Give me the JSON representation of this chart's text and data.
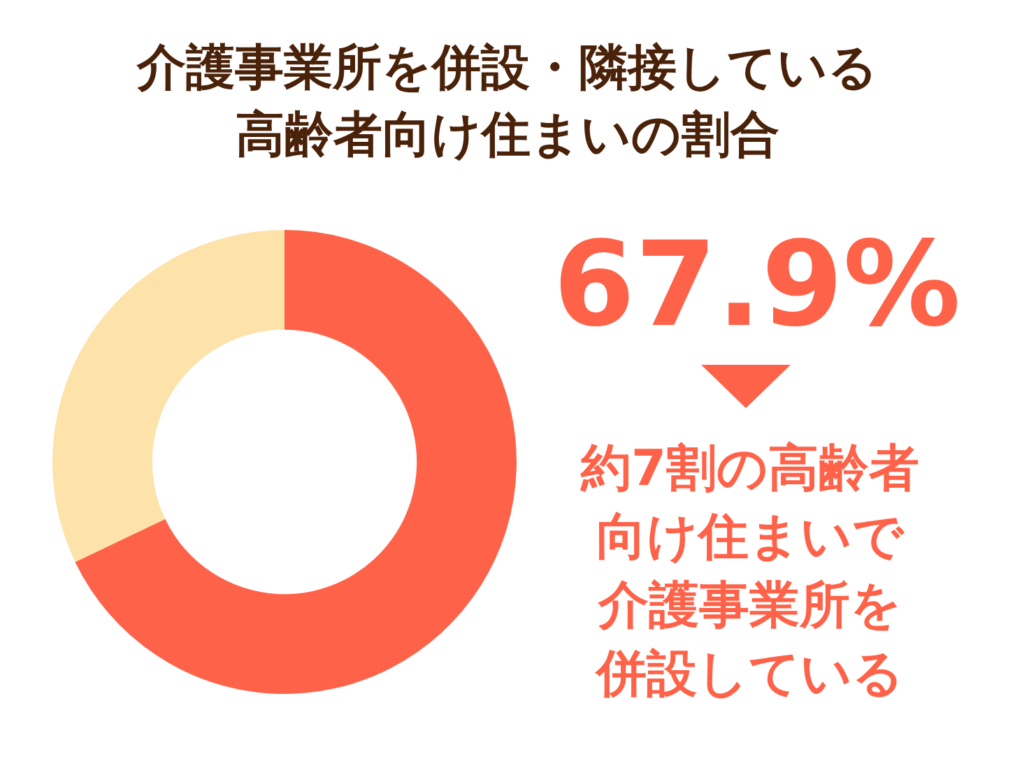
{
  "chart_data": {
    "type": "donut",
    "title": "介護事業所を併設・隣接している高齢者向け住まいの割合",
    "categories": [
      null,
      null
    ],
    "values": [
      67.9,
      32.1
    ],
    "colors": [
      "#fe6249",
      "#fde3a9"
    ],
    "value_labels": [
      "67.9%",
      null
    ],
    "legend": false,
    "annotations": [
      "約7割の高齢者向け住まいで介護事業所を併設している"
    ]
  }
}
